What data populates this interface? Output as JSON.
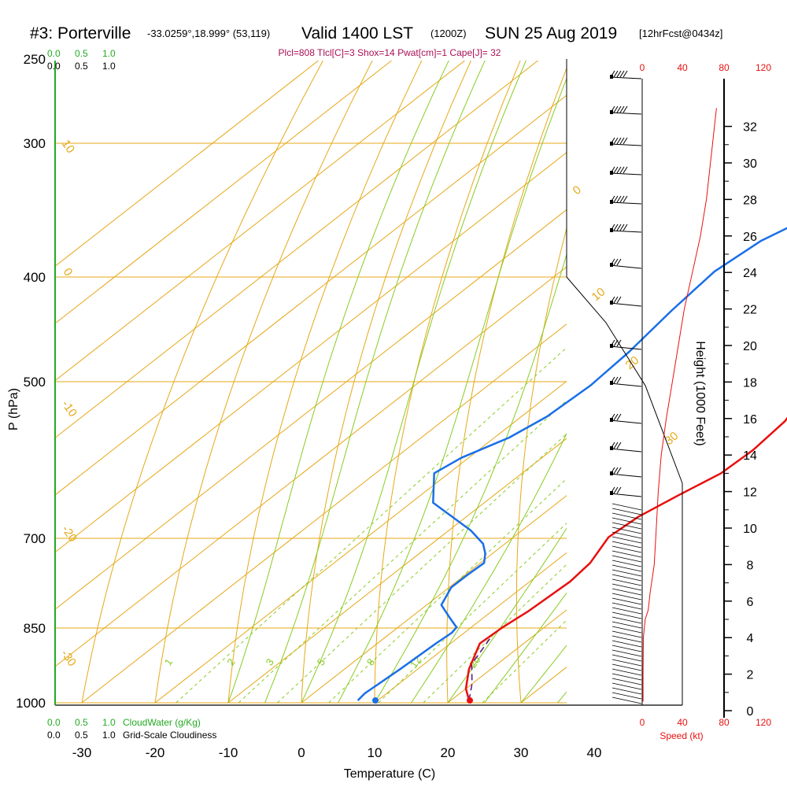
{
  "header": {
    "station": "#3: Porterville",
    "coords": "-33.0259°,18.999° (53,119)",
    "valid": "Valid 1400 LST",
    "utc": "(1200Z)",
    "date": "SUN 25 Aug 2019",
    "forecast": "[12hrFcst@0434z]",
    "indices": "Plcl=808 Tlcl[C]=3 Shox=14 Pwat[cm]=1 Cape[J]= 32"
  },
  "cloud_scale": {
    "cloudwater_ticks": [
      "0.0",
      "0.5",
      "1.0"
    ],
    "cloudwater_label": "CloudWater (g/Kg)",
    "cloudiness_ticks": [
      "0.0",
      "0.5",
      "1.0"
    ],
    "cloudiness_label": "Grid-Scale Cloudiness"
  },
  "speed_scale": {
    "ticks": [
      "0",
      "40",
      "80",
      "120"
    ],
    "label": "Speed (kt)"
  },
  "colors": {
    "temperature": "#e8100f",
    "dewpoint": "#1a6fe8",
    "isotherm": "#e6a817",
    "mixing_ratio": "#88cc22",
    "parcel": "#551188",
    "speed_profile": "#e8100f",
    "cloud": "#22aa22"
  },
  "chart_data": {
    "type": "line",
    "title": "#3: Porterville Valid 1400 LST (1200Z) SUN 25 Aug 2019 [12hrFcst@0434z]",
    "xlabel": "Temperature (C)",
    "ylabel": "P (hPa)",
    "y2label": "Height (1000 Feet)",
    "x_ticks": [
      "-30",
      "-20",
      "-10",
      "0",
      "10",
      "20",
      "30",
      "40"
    ],
    "y_ticks": [
      "250",
      "300",
      "400",
      "500",
      "700",
      "850",
      "1000"
    ],
    "height_ticks": [
      "0",
      "2",
      "4",
      "6",
      "8",
      "10",
      "12",
      "14",
      "16",
      "18",
      "20",
      "22",
      "24",
      "26",
      "28",
      "30",
      "32"
    ],
    "isotherm_labels": [
      "10",
      "0",
      "-10",
      "-20",
      "-30",
      "0",
      "10",
      "20",
      "30"
    ],
    "mixing_ratio_labels": [
      "1",
      "2",
      "3",
      "5",
      "8",
      "12",
      "20"
    ],
    "ylim": [
      1000,
      250
    ],
    "xlim": [
      -35,
      36
    ],
    "series": [
      {
        "name": "Temperature",
        "x": [
          22.5,
          20,
          17,
          14,
          14.3,
          15,
          15.5,
          15,
          13,
          13.5,
          15.2,
          17.2,
          17.5,
          16.8,
          13.8,
          11,
          9,
          8.5,
          8.3,
          8,
          6.8,
          4.5
        ],
        "y": [
          995,
          970,
          930,
          880,
          850,
          820,
          770,
          740,
          700,
          670,
          640,
          610,
          580,
          545,
          500,
          455,
          410,
          370,
          340,
          315,
          290,
          265
        ]
      },
      {
        "name": "Dewpoint",
        "x": [
          7.3,
          7,
          7.6,
          8,
          8.3,
          8,
          5,
          2,
          0.3,
          0.3,
          0.5,
          -1,
          -3,
          -7,
          -17,
          -22,
          -21,
          -18,
          -16.5,
          -16,
          -16.6,
          -18,
          -19,
          -18,
          -16,
          -15,
          -14.2,
          -12,
          -11,
          -9
        ],
        "y": [
          995,
          980,
          930,
          880,
          860,
          850,
          830,
          810,
          780,
          760,
          740,
          725,
          710,
          690,
          650,
          610,
          590,
          565,
          540,
          505,
          470,
          430,
          395,
          370,
          355,
          345,
          330,
          310,
          290,
          265
        ]
      },
      {
        "name": "Parcel",
        "x": [
          22.5,
          20,
          16.5,
          14.5
        ],
        "y": [
          995,
          960,
          920,
          870
        ]
      }
    ],
    "speed_profile": {
      "x": [
        0.9,
        0.9,
        1.2,
        3,
        6,
        8,
        12,
        14,
        16,
        19,
        24,
        30,
        36,
        42,
        50,
        58,
        64,
        68,
        70,
        72,
        73,
        74
      ],
      "height": [
        0.5,
        2,
        4,
        5,
        5.5,
        6.5,
        8,
        10,
        12,
        14,
        16,
        18,
        20,
        22,
        24,
        26,
        28,
        30,
        31,
        32,
        32.5,
        33
      ]
    }
  }
}
